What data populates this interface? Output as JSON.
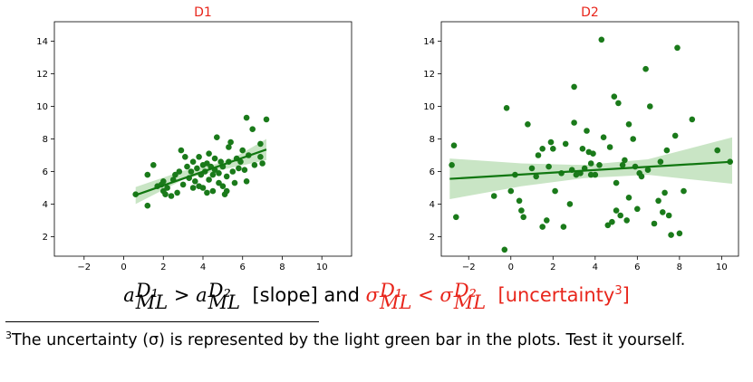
{
  "chart_data": [
    {
      "type": "scatter",
      "title": "D1",
      "title_color": "#e8251b",
      "xlim": [
        -3.5,
        11.5
      ],
      "ylim": [
        0.8,
        15.2
      ],
      "xticks": [
        -2,
        0,
        2,
        4,
        6,
        8,
        10
      ],
      "yticks": [
        2,
        4,
        6,
        8,
        10,
        12,
        14
      ],
      "point_color": "#1a7a1a",
      "line_color": "#117711",
      "band_color": "#b7dcb2",
      "fit": {
        "x": [
          0.6,
          7.2
        ],
        "y": [
          4.55,
          7.35
        ]
      },
      "band": {
        "x": [
          0.6,
          3.0,
          4.2,
          5.5,
          7.2
        ],
        "lower": [
          4.0,
          5.5,
          5.9,
          6.25,
          6.7
        ],
        "upper": [
          5.05,
          6.05,
          6.3,
          6.8,
          8.0
        ]
      },
      "points": [
        [
          0.6,
          4.6
        ],
        [
          1.2,
          5.8
        ],
        [
          1.2,
          3.9
        ],
        [
          1.5,
          6.4
        ],
        [
          1.7,
          5.1
        ],
        [
          1.9,
          5.2
        ],
        [
          2.0,
          4.8
        ],
        [
          2.0,
          5.4
        ],
        [
          2.1,
          4.6
        ],
        [
          2.2,
          5.0
        ],
        [
          2.4,
          4.5
        ],
        [
          2.5,
          5.5
        ],
        [
          2.6,
          5.8
        ],
        [
          2.7,
          4.7
        ],
        [
          2.8,
          6.0
        ],
        [
          2.9,
          7.3
        ],
        [
          3.0,
          5.2
        ],
        [
          3.1,
          6.9
        ],
        [
          3.2,
          6.3
        ],
        [
          3.3,
          5.6
        ],
        [
          3.4,
          6.0
        ],
        [
          3.5,
          6.6
        ],
        [
          3.5,
          5.0
        ],
        [
          3.6,
          5.4
        ],
        [
          3.7,
          6.2
        ],
        [
          3.8,
          5.1
        ],
        [
          3.8,
          6.9
        ],
        [
          3.9,
          5.8
        ],
        [
          4.0,
          6.4
        ],
        [
          4.0,
          5.0
        ],
        [
          4.1,
          6.0
        ],
        [
          4.2,
          4.7
        ],
        [
          4.2,
          6.5
        ],
        [
          4.3,
          5.5
        ],
        [
          4.3,
          7.1
        ],
        [
          4.4,
          6.3
        ],
        [
          4.5,
          5.8
        ],
        [
          4.5,
          4.8
        ],
        [
          4.6,
          6.8
        ],
        [
          4.6,
          6.1
        ],
        [
          4.7,
          8.1
        ],
        [
          4.8,
          5.3
        ],
        [
          4.8,
          5.9
        ],
        [
          4.9,
          6.6
        ],
        [
          5.0,
          6.3
        ],
        [
          5.0,
          5.1
        ],
        [
          5.1,
          4.6
        ],
        [
          5.2,
          4.8
        ],
        [
          5.2,
          5.7
        ],
        [
          5.3,
          7.5
        ],
        [
          5.3,
          6.6
        ],
        [
          5.4,
          7.8
        ],
        [
          5.5,
          6.0
        ],
        [
          5.6,
          5.3
        ],
        [
          5.7,
          6.8
        ],
        [
          5.8,
          6.2
        ],
        [
          5.9,
          6.6
        ],
        [
          6.0,
          7.3
        ],
        [
          6.1,
          6.1
        ],
        [
          6.2,
          5.4
        ],
        [
          6.3,
          7.0
        ],
        [
          6.5,
          8.6
        ],
        [
          6.6,
          6.4
        ],
        [
          6.9,
          7.7
        ],
        [
          6.9,
          6.9
        ],
        [
          7.0,
          6.5
        ],
        [
          7.2,
          9.2
        ],
        [
          6.2,
          9.3
        ]
      ]
    },
    {
      "type": "scatter",
      "title": "D2",
      "title_color": "#e8251b",
      "xlim": [
        -3.3,
        10.8
      ],
      "ylim": [
        0.8,
        15.2
      ],
      "xticks": [
        -2,
        0,
        2,
        4,
        6,
        8,
        10
      ],
      "yticks": [
        2,
        4,
        6,
        8,
        10,
        12,
        14
      ],
      "point_color": "#1a7a1a",
      "line_color": "#117711",
      "band_color": "#b7dcb2",
      "fit": {
        "x": [
          -2.9,
          10.5
        ],
        "y": [
          5.55,
          6.6
        ]
      },
      "band": {
        "x": [
          -2.9,
          0.5,
          3.5,
          6.5,
          10.5
        ],
        "lower": [
          4.3,
          5.1,
          5.6,
          5.8,
          5.25
        ],
        "upper": [
          6.8,
          6.5,
          6.4,
          6.75,
          8.1
        ]
      },
      "points": [
        [
          -2.8,
          6.4
        ],
        [
          -2.7,
          7.6
        ],
        [
          -2.6,
          3.2
        ],
        [
          -0.8,
          4.5
        ],
        [
          -0.3,
          1.2
        ],
        [
          -0.2,
          9.9
        ],
        [
          0.0,
          4.8
        ],
        [
          0.2,
          5.8
        ],
        [
          0.4,
          4.2
        ],
        [
          0.5,
          3.6
        ],
        [
          0.6,
          3.2
        ],
        [
          0.8,
          8.9
        ],
        [
          1.0,
          6.2
        ],
        [
          1.2,
          5.7
        ],
        [
          1.3,
          7.0
        ],
        [
          1.5,
          2.6
        ],
        [
          1.5,
          7.4
        ],
        [
          1.7,
          3.0
        ],
        [
          1.8,
          6.3
        ],
        [
          1.9,
          7.8
        ],
        [
          2.0,
          7.4
        ],
        [
          2.1,
          4.8
        ],
        [
          2.4,
          5.9
        ],
        [
          2.5,
          2.6
        ],
        [
          2.6,
          7.7
        ],
        [
          2.8,
          4.0
        ],
        [
          2.9,
          6.1
        ],
        [
          3.0,
          11.2
        ],
        [
          3.0,
          9.0
        ],
        [
          3.1,
          5.8
        ],
        [
          3.3,
          5.9
        ],
        [
          3.4,
          7.4
        ],
        [
          3.5,
          6.2
        ],
        [
          3.6,
          8.5
        ],
        [
          3.7,
          7.2
        ],
        [
          3.8,
          6.5
        ],
        [
          3.8,
          5.8
        ],
        [
          3.9,
          7.1
        ],
        [
          4.0,
          5.8
        ],
        [
          4.2,
          6.4
        ],
        [
          4.3,
          14.1
        ],
        [
          4.4,
          8.1
        ],
        [
          4.6,
          2.7
        ],
        [
          4.7,
          7.5
        ],
        [
          4.8,
          2.9
        ],
        [
          4.9,
          10.6
        ],
        [
          5.0,
          3.6
        ],
        [
          5.0,
          5.3
        ],
        [
          5.1,
          10.2
        ],
        [
          5.2,
          3.3
        ],
        [
          5.3,
          6.4
        ],
        [
          5.4,
          6.7
        ],
        [
          5.5,
          3.0
        ],
        [
          5.6,
          8.9
        ],
        [
          5.6,
          4.4
        ],
        [
          5.8,
          8.0
        ],
        [
          5.9,
          6.3
        ],
        [
          6.0,
          3.7
        ],
        [
          6.1,
          5.9
        ],
        [
          6.2,
          5.7
        ],
        [
          6.4,
          12.3
        ],
        [
          6.5,
          6.1
        ],
        [
          6.6,
          10.0
        ],
        [
          6.8,
          2.8
        ],
        [
          7.0,
          4.2
        ],
        [
          7.1,
          6.6
        ],
        [
          7.2,
          3.5
        ],
        [
          7.3,
          4.7
        ],
        [
          7.4,
          7.3
        ],
        [
          7.5,
          3.3
        ],
        [
          7.6,
          2.1
        ],
        [
          7.8,
          8.2
        ],
        [
          7.9,
          13.6
        ],
        [
          8.0,
          2.2
        ],
        [
          8.2,
          4.8
        ],
        [
          8.6,
          9.2
        ],
        [
          9.8,
          7.3
        ],
        [
          10.4,
          6.6
        ]
      ]
    }
  ],
  "equation": {
    "a": "a",
    "sub1": "1",
    "sup_d1": "D₁",
    "sub_ml": "ML",
    "sup_d2": "D₂",
    "gt": " > ",
    "slope_label": "[slope]",
    "and_word": " and ",
    "sigma": "σ",
    "lt": " < ",
    "uncertainty_label": "[uncertainty",
    "footnote_mark": "3",
    "close_bracket": "]"
  },
  "footnote": {
    "mark": "3",
    "text": "The uncertainty (σ) is represented by the light green bar in the plots. Test it yourself."
  }
}
